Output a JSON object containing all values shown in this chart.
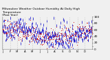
{
  "title": "Milwaukee Weather Outdoor Humidity At Daily High\nTemperature\n(Past Year)",
  "title_fontsize": 3.2,
  "bg_color": "#f0f0f0",
  "plot_bg_color": "#f0f0f0",
  "grid_color": "#aaaaaa",
  "blue_color": "#0000cc",
  "red_color": "#cc0000",
  "ylim": [
    0,
    100
  ],
  "ytick_labels": [
    "0",
    "",
    "20",
    "",
    "40",
    "",
    "60",
    "",
    "80",
    "",
    "100"
  ],
  "yticks": [
    0,
    10,
    20,
    30,
    40,
    50,
    60,
    70,
    80,
    90,
    100
  ],
  "ylabel_fontsize": 3.2,
  "xlabel_fontsize": 2.8,
  "n_points": 365,
  "seed": 42,
  "month_starts": [
    0,
    31,
    59,
    90,
    120,
    151,
    181,
    212,
    243,
    273,
    304,
    334
  ],
  "month_labels": [
    "J",
    "F",
    "M",
    "A",
    "M",
    "J",
    "J",
    "A",
    "S",
    "O",
    "N",
    "D"
  ]
}
